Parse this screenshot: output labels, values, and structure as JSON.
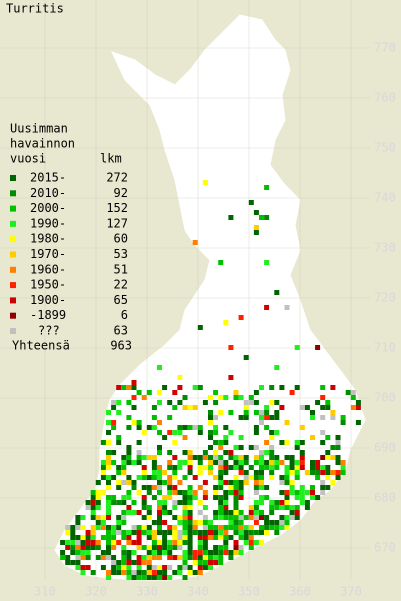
{
  "title": "Turritis",
  "legend": {
    "heading": [
      "Uusimman",
      "havainnon",
      "vuosi"
    ],
    "count_heading": "lkm",
    "rows": [
      {
        "label": "2015-",
        "count": 272,
        "color": "#006400"
      },
      {
        "label": "2010-",
        "count": 92,
        "color": "#008c00"
      },
      {
        "label": "2000-",
        "count": 152,
        "color": "#00c000"
      },
      {
        "label": "1990-",
        "count": 127,
        "color": "#20ee20"
      },
      {
        "label": "1980-",
        "count": 60,
        "color": "#ffff00"
      },
      {
        "label": "1970-",
        "count": 53,
        "color": "#ffcc00"
      },
      {
        "label": "1960-",
        "count": 51,
        "color": "#ff8000"
      },
      {
        "label": "1950-",
        "count": 22,
        "color": "#ff2000"
      },
      {
        "label": "1900-",
        "count": 65,
        "color": "#d00000"
      },
      {
        "label": "-1899",
        "count": 6,
        "color": "#900000"
      },
      {
        "label": "???",
        "count": 63,
        "color": "#c0c0c0"
      }
    ],
    "total_label": "Yhteensä",
    "total": 963
  },
  "x_grid": [
    310,
    320,
    330,
    340,
    350,
    360,
    370
  ],
  "y_grid": [
    670,
    680,
    690,
    700,
    710,
    720,
    730,
    740,
    750,
    760,
    770
  ]
}
